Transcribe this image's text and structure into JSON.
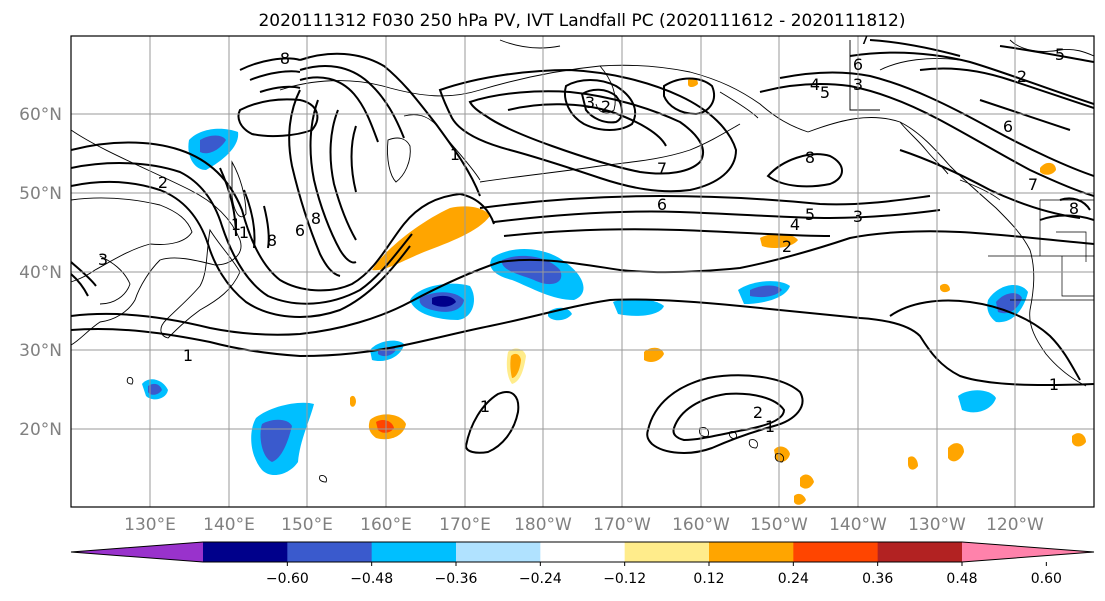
{
  "title": "2020111312 F030 250 hPa PV, IVT Landfall PC (2020111612 - 2020111812)",
  "lat_labels": [
    "60°N",
    "50°N",
    "40°N",
    "30°N",
    "20°N"
  ],
  "lon_labels": [
    "130°E",
    "140°E",
    "150°E",
    "160°E",
    "170°E",
    "180°W",
    "170°W",
    "160°W",
    "150°W",
    "140°W",
    "130°W",
    "120°W"
  ],
  "colorbar": {
    "ticks": [
      "−0.60",
      "−0.48",
      "−0.36",
      "−0.24",
      "−0.12",
      "0.12",
      "0.24",
      "0.36",
      "0.48",
      "0.60"
    ],
    "colors": [
      "#9932cc",
      "#00008b",
      "#3a5acd",
      "#00bfff",
      "#b0e2ff",
      "#ffffff",
      "#ffec8b",
      "#ffa500",
      "#ff4500",
      "#b22222",
      "#ff82ab"
    ]
  },
  "contour_labels": [
    "8",
    "3",
    "2",
    "1",
    "7",
    "4",
    "5",
    "6",
    "8",
    "3",
    "4",
    "5",
    "3",
    "6",
    "7",
    "8",
    "2",
    "1",
    "1",
    "1",
    "2",
    "1",
    "2",
    "3",
    "6",
    "7",
    "8",
    "1",
    "1",
    "6",
    "8",
    "2",
    "5"
  ]
}
